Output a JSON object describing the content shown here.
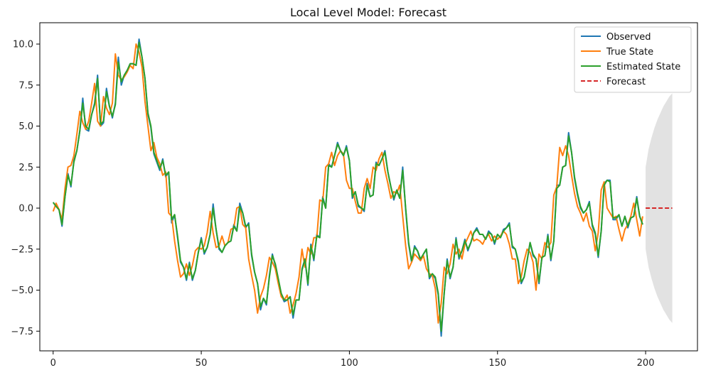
{
  "chart_data": {
    "type": "line",
    "title": "Local Level Model: Forecast",
    "xlabel": "",
    "ylabel": "",
    "xlim": [
      -4.5,
      217.5
    ],
    "ylim": [
      -8.7,
      11.3
    ],
    "xticks": [
      0,
      50,
      100,
      150,
      200
    ],
    "yticks": [
      -7.5,
      -5.0,
      -2.5,
      0.0,
      2.5,
      5.0,
      7.5,
      10.0
    ],
    "ytick_labels": [
      "−7.5",
      "−5.0",
      "−2.5",
      "0.0",
      "2.5",
      "5.0",
      "7.5",
      "10.0"
    ],
    "legend": {
      "position": "top-right",
      "entries": [
        "Observed",
        "True State",
        "Estimated State",
        "Forecast"
      ]
    },
    "colors": {
      "observed": "#1f77b4",
      "true_state": "#ff7f0e",
      "estimated_state": "#2ca02c",
      "forecast": "#d62728",
      "band": "#d3d3d3"
    },
    "observed_x": [
      0,
      2,
      3,
      4,
      5,
      6,
      7,
      8,
      9,
      10,
      11,
      12,
      13,
      14,
      15,
      16,
      17,
      18,
      19,
      20,
      21,
      22,
      23,
      24,
      25,
      26,
      27,
      28,
      29,
      30,
      31,
      32,
      33,
      34,
      35,
      36,
      37,
      38,
      39,
      40,
      41,
      42,
      43,
      44,
      45,
      46,
      47,
      48,
      49,
      50,
      51,
      52,
      53,
      54,
      55,
      56,
      57,
      58,
      59,
      60,
      61,
      62,
      63,
      64,
      65,
      66,
      67,
      68,
      69,
      70,
      71,
      72,
      73,
      74,
      75,
      76,
      77,
      78,
      79,
      80,
      81,
      82,
      83,
      84,
      85,
      86,
      87,
      88,
      89,
      90,
      91,
      92,
      93,
      94,
      95,
      96,
      97,
      98,
      99,
      100,
      101,
      102,
      103,
      104,
      105,
      106,
      107,
      108,
      109,
      110,
      111,
      112,
      113,
      114,
      115,
      116,
      117,
      118,
      119,
      120,
      121,
      122,
      123,
      124,
      125,
      126,
      127,
      128,
      129,
      130,
      131,
      132,
      133,
      134,
      135,
      136,
      137,
      138,
      139,
      140,
      141,
      142,
      143,
      144,
      145,
      146,
      147,
      148,
      149,
      150,
      151,
      152,
      153,
      154,
      155,
      156,
      157,
      158,
      159,
      160,
      161,
      162,
      163,
      164,
      165,
      166,
      167,
      168,
      169,
      170,
      171,
      172,
      173,
      174,
      175,
      176,
      177,
      178,
      179,
      180,
      181,
      182,
      183,
      184,
      185,
      186,
      187,
      188,
      189,
      190,
      191,
      192,
      193,
      194,
      195,
      196,
      197,
      198,
      199
    ],
    "observed_y": [
      0.35,
      -0.1,
      -1.1,
      0.7,
      2.1,
      1.3,
      2.9,
      3.5,
      4.7,
      6.7,
      4.8,
      4.7,
      5.7,
      6.4,
      8.1,
      5.0,
      5.2,
      7.3,
      6.2,
      5.5,
      6.4,
      9.2,
      7.5,
      8.1,
      8.4,
      8.8,
      8.8,
      8.7,
      10.3,
      9.2,
      7.9,
      5.7,
      4.9,
      3.3,
      2.8,
      2.3,
      3.0,
      1.9,
      2.2,
      -0.9,
      -0.4,
      -1.8,
      -3.3,
      -3.6,
      -4.4,
      -3.3,
      -4.4,
      -3.8,
      -2.7,
      -1.8,
      -2.8,
      -2.4,
      -1.6,
      0.25,
      -1.3,
      -2.5,
      -2.7,
      -2.3,
      -2.1,
      -2.0,
      -1.0,
      -1.4,
      0.3,
      -0.3,
      -1.2,
      -0.9,
      -2.9,
      -3.9,
      -4.6,
      -6.2,
      -5.5,
      -5.9,
      -4.1,
      -2.8,
      -3.5,
      -4.4,
      -5.3,
      -5.7,
      -5.6,
      -5.4,
      -6.7,
      -5.6,
      -5.6,
      -3.7,
      -3.1,
      -4.7,
      -2.2,
      -3.2,
      -1.6,
      -1.8,
      0.7,
      0.0,
      2.7,
      2.5,
      3.2,
      4.0,
      3.5,
      3.2,
      3.8,
      2.9,
      0.6,
      1.0,
      0.1,
      0.0,
      -0.2,
      1.5,
      0.7,
      0.8,
      2.8,
      2.6,
      3.0,
      3.5,
      2.2,
      1.3,
      0.5,
      1.1,
      0.6,
      2.5,
      -0.1,
      -2.2,
      -3.3,
      -2.3,
      -2.6,
      -3.2,
      -2.8,
      -2.5,
      -4.3,
      -4.0,
      -4.3,
      -5.3,
      -7.8,
      -5.2,
      -3.1,
      -4.3,
      -3.6,
      -1.8,
      -3.1,
      -2.6,
      -1.9,
      -2.6,
      -2.1,
      -1.5,
      -1.2,
      -1.6,
      -1.6,
      -1.9,
      -1.4,
      -1.6,
      -2.2,
      -1.6,
      -1.8,
      -1.3,
      -1.2,
      -0.9,
      -2.4,
      -2.5,
      -3.3,
      -4.6,
      -4.2,
      -3.2,
      -2.1,
      -2.9,
      -3.1,
      -4.6,
      -3.0,
      -2.9,
      -1.6,
      -3.2,
      -2.0,
      1.4,
      1.4,
      2.5,
      2.6,
      4.6,
      3.4,
      1.8,
      0.8,
      0.0,
      -0.3,
      -0.1,
      0.4,
      -1.1,
      -1.6,
      -3.0,
      -1.4,
      1.5,
      1.7,
      1.7,
      -0.7,
      -0.7,
      -0.4,
      -1.1,
      -0.5,
      -1.2,
      -0.6,
      -0.5,
      0.7,
      -0.5,
      -1.0,
      -0.6,
      -0.1,
      0.0
    ],
    "true_state_x": [
      0,
      1,
      2,
      3,
      4,
      5,
      6,
      7,
      8,
      9,
      10,
      11,
      12,
      13,
      14,
      15,
      16,
      17,
      18,
      19,
      20,
      21,
      22,
      23,
      24,
      25,
      26,
      27,
      28,
      29,
      30,
      31,
      32,
      33,
      34,
      35,
      36,
      37,
      38,
      39,
      40,
      41,
      42,
      43,
      44,
      45,
      46,
      47,
      48,
      49,
      50,
      51,
      52,
      53,
      54,
      55,
      56,
      57,
      58,
      59,
      60,
      61,
      62,
      63,
      64,
      65,
      66,
      67,
      68,
      69,
      70,
      71,
      72,
      73,
      74,
      75,
      76,
      77,
      78,
      79,
      80,
      81,
      82,
      83,
      84,
      85,
      86,
      87,
      88,
      89,
      90,
      91,
      92,
      93,
      94,
      95,
      96,
      97,
      98,
      99,
      100,
      101,
      102,
      103,
      104,
      105,
      106,
      107,
      108,
      109,
      110,
      111,
      112,
      113,
      114,
      115,
      116,
      117,
      118,
      119,
      120,
      121,
      122,
      123,
      124,
      125,
      126,
      127,
      128,
      129,
      130,
      131,
      132,
      133,
      134,
      135,
      136,
      137,
      138,
      139,
      140,
      141,
      142,
      143,
      144,
      145,
      146,
      147,
      148,
      149,
      150,
      151,
      152,
      153,
      154,
      155,
      156,
      157,
      158,
      159,
      160,
      161,
      162,
      163,
      164,
      165,
      166,
      167,
      168,
      169,
      170,
      171,
      172,
      173,
      174,
      175,
      176,
      177,
      178,
      179,
      180,
      181,
      182,
      183,
      184,
      185,
      186,
      187,
      188,
      189,
      190,
      191,
      192,
      193,
      194,
      195,
      196,
      197,
      198,
      199
    ],
    "true_state_y": [
      -0.2,
      0.3,
      -0.1,
      -0.7,
      1.2,
      2.5,
      2.6,
      3.2,
      4.5,
      5.9,
      5.2,
      4.8,
      5.3,
      6.4,
      7.6,
      5.3,
      5.0,
      6.8,
      6.1,
      5.7,
      6.4,
      9.4,
      8.1,
      7.8,
      8.0,
      8.3,
      8.7,
      8.5,
      10.0,
      9.5,
      8.6,
      6.5,
      5.0,
      3.5,
      4.0,
      3.1,
      2.7,
      2.0,
      2.2,
      -0.3,
      -0.5,
      -2.0,
      -3.2,
      -4.2,
      -4.0,
      -3.4,
      -4.1,
      -3.5,
      -2.6,
      -2.4,
      -2.5,
      -2.3,
      -1.5,
      -0.2,
      -1.5,
      -2.4,
      -2.3,
      -1.7,
      -2.3,
      -2.1,
      -1.3,
      -1.2,
      0.0,
      0.1,
      -1.0,
      -1.2,
      -3.1,
      -4.1,
      -5.0,
      -6.4,
      -5.4,
      -4.9,
      -4.1,
      -3.0,
      -3.3,
      -3.7,
      -4.6,
      -5.4,
      -5.6,
      -5.3,
      -6.4,
      -5.9,
      -5.2,
      -4.2,
      -2.5,
      -3.6,
      -2.4,
      -2.8,
      -1.8,
      -1.8,
      0.5,
      0.4,
      2.5,
      2.7,
      3.4,
      2.6,
      3.2,
      3.5,
      3.3,
      1.7,
      1.2,
      1.2,
      0.4,
      -0.3,
      -0.3,
      1.2,
      1.8,
      1.2,
      2.5,
      2.3,
      3.0,
      3.4,
      2.3,
      1.5,
      0.6,
      1.0,
      0.9,
      1.4,
      -0.5,
      -2.3,
      -3.7,
      -3.3,
      -2.8,
      -3.0,
      -3.2,
      -2.9,
      -3.7,
      -4.0,
      -4.1,
      -4.9,
      -7.0,
      -5.8,
      -3.6,
      -4.0,
      -3.4,
      -2.2,
      -2.8,
      -2.5,
      -3.1,
      -2.2,
      -1.8,
      -1.4,
      -2.0,
      -1.9,
      -2.0,
      -2.2,
      -1.8,
      -1.6,
      -2.0,
      -1.7,
      -1.9,
      -1.7,
      -1.4,
      -1.6,
      -2.2,
      -3.1,
      -3.1,
      -4.6,
      -4.2,
      -3.2,
      -2.5,
      -2.7,
      -3.3,
      -5.0,
      -2.8,
      -3.1,
      -2.1,
      -2.4,
      -2.1,
      0.8,
      1.3,
      3.7,
      3.2,
      3.8,
      3.2,
      2.0,
      0.9,
      0.1,
      -0.3,
      -0.8,
      -0.3,
      -1.1,
      -1.4,
      -2.6,
      -1.5,
      1.1,
      1.6,
      0.0,
      -0.3,
      -0.6,
      -0.5,
      -1.3,
      -2.0,
      -1.3,
      -1.0,
      -0.5,
      0.3,
      -0.7,
      -1.7,
      -0.5,
      -0.3
    ],
    "estimated_state_x": [
      0,
      1,
      2,
      3,
      4,
      5,
      6,
      7,
      8,
      9,
      10,
      11,
      12,
      13,
      14,
      15,
      16,
      17,
      18,
      19,
      20,
      21,
      22,
      23,
      24,
      25,
      26,
      27,
      28,
      29,
      30,
      31,
      32,
      33,
      34,
      35,
      36,
      37,
      38,
      39,
      40,
      41,
      42,
      43,
      44,
      45,
      46,
      47,
      48,
      49,
      50,
      51,
      52,
      53,
      54,
      55,
      56,
      57,
      58,
      59,
      60,
      61,
      62,
      63,
      64,
      65,
      66,
      67,
      68,
      69,
      70,
      71,
      72,
      73,
      74,
      75,
      76,
      77,
      78,
      79,
      80,
      81,
      82,
      83,
      84,
      85,
      86,
      87,
      88,
      89,
      90,
      91,
      92,
      93,
      94,
      95,
      96,
      97,
      98,
      99,
      100,
      101,
      102,
      103,
      104,
      105,
      106,
      107,
      108,
      109,
      110,
      111,
      112,
      113,
      114,
      115,
      116,
      117,
      118,
      119,
      120,
      121,
      122,
      123,
      124,
      125,
      126,
      127,
      128,
      129,
      130,
      131,
      132,
      133,
      134,
      135,
      136,
      137,
      138,
      139,
      140,
      141,
      142,
      143,
      144,
      145,
      146,
      147,
      148,
      149,
      150,
      151,
      152,
      153,
      154,
      155,
      156,
      157,
      158,
      159,
      160,
      161,
      162,
      163,
      164,
      165,
      166,
      167,
      168,
      169,
      170,
      171,
      172,
      173,
      174,
      175,
      176,
      177,
      178,
      179,
      180,
      181,
      182,
      183,
      184,
      185,
      186,
      187,
      188,
      189,
      190,
      191,
      192,
      193,
      194,
      195,
      196,
      197,
      198,
      199
    ],
    "estimated_state_y": [
      0.35,
      0.1,
      -0.1,
      -1.0,
      0.7,
      2.0,
      1.4,
      2.8,
      3.5,
      4.7,
      6.4,
      5.0,
      4.8,
      5.7,
      6.3,
      7.9,
      5.1,
      5.3,
      7.1,
      6.2,
      5.6,
      6.3,
      8.9,
      7.7,
      8.1,
      8.4,
      8.8,
      8.8,
      8.7,
      10.1,
      9.2,
      7.9,
      5.8,
      5.0,
      3.4,
      2.9,
      2.4,
      2.9,
      2.0,
      2.2,
      -0.7,
      -0.4,
      -1.7,
      -3.2,
      -3.6,
      -4.3,
      -3.4,
      -4.3,
      -3.8,
      -2.7,
      -1.9,
      -2.7,
      -2.4,
      -1.6,
      0.0,
      -1.3,
      -2.4,
      -2.7,
      -2.3,
      -2.1,
      -2.0,
      -1.1,
      -1.4,
      0.1,
      -0.3,
      -1.1,
      -1.0,
      -2.8,
      -3.9,
      -4.6,
      -6.0,
      -5.5,
      -5.8,
      -4.2,
      -2.9,
      -3.4,
      -4.3,
      -5.2,
      -5.6,
      -5.6,
      -5.4,
      -6.5,
      -5.6,
      -5.6,
      -3.8,
      -3.1,
      -4.6,
      -2.3,
      -3.1,
      -1.7,
      -1.8,
      0.6,
      0.0,
      2.6,
      2.5,
      3.2,
      3.9,
      3.5,
      3.2,
      3.7,
      2.9,
      0.7,
      1.0,
      0.2,
      0.0,
      -0.1,
      1.4,
      0.7,
      0.8,
      2.7,
      2.6,
      3.0,
      3.4,
      2.2,
      1.3,
      0.6,
      1.1,
      0.6,
      2.3,
      0.0,
      -2.1,
      -3.2,
      -2.4,
      -2.6,
      -3.1,
      -2.8,
      -2.5,
      -4.2,
      -4.0,
      -4.2,
      -5.2,
      -7.5,
      -5.2,
      -3.2,
      -4.2,
      -3.6,
      -1.9,
      -3.0,
      -2.6,
      -2.0,
      -2.5,
      -2.1,
      -1.5,
      -1.3,
      -1.6,
      -1.6,
      -1.9,
      -1.5,
      -1.6,
      -2.1,
      -1.6,
      -1.8,
      -1.4,
      -1.2,
      -1.0,
      -2.3,
      -2.5,
      -3.2,
      -4.5,
      -4.2,
      -3.2,
      -2.1,
      -2.8,
      -3.1,
      -4.5,
      -3.0,
      -2.9,
      -1.7,
      -3.1,
      -2.0,
      1.2,
      1.4,
      2.5,
      2.6,
      4.4,
      3.4,
      1.9,
      0.9,
      0.1,
      -0.3,
      -0.1,
      0.3,
      -1.0,
      -1.5,
      -2.9,
      -1.4,
      1.4,
      1.7,
      1.6,
      -0.6,
      -0.6,
      -0.4,
      -1.1,
      -0.5,
      -1.1,
      -0.6,
      -0.5,
      0.6,
      -0.5,
      -1.0,
      -0.6,
      -0.1,
      0.0
    ],
    "forecast_x": [
      200,
      209
    ],
    "forecast_y": [
      0.0,
      0.0
    ],
    "forecast_interval": {
      "x": [
        200,
        201,
        202,
        203,
        204,
        205,
        206,
        207,
        208,
        209
      ],
      "lower": [
        -2.5,
        -3.6,
        -4.3,
        -4.9,
        -5.4,
        -5.8,
        -6.2,
        -6.5,
        -6.8,
        -7.0
      ],
      "upper": [
        2.5,
        3.6,
        4.3,
        4.9,
        5.4,
        5.8,
        6.2,
        6.5,
        6.8,
        7.0
      ]
    }
  }
}
